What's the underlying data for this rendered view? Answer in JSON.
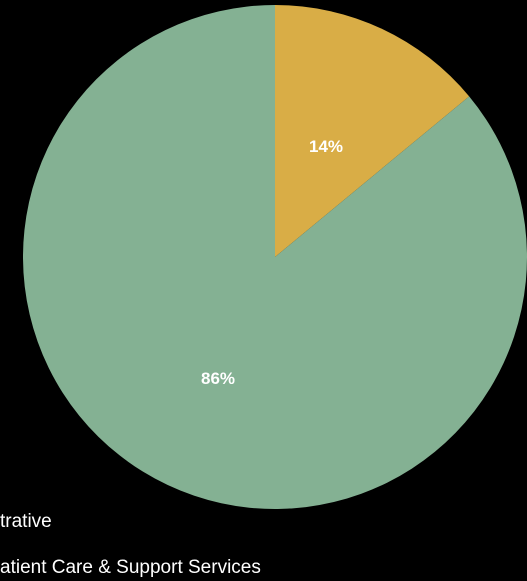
{
  "chart_data": {
    "type": "pie",
    "slices": [
      {
        "name": "Administrative",
        "value": 14,
        "label": "14%",
        "color": "#d9ad46"
      },
      {
        "name": "Patient Care & Support Services",
        "value": 86,
        "label": "86%",
        "color": "#84b193"
      }
    ],
    "start_angle_deg": 0,
    "direction": "clockwise",
    "legend_placement": "bottom-left",
    "legend_entries": [
      {
        "text": "Administrative",
        "visible_text": "trative"
      },
      {
        "text": "Patient Care & Support Services",
        "visible_text": "atient Care & Support Services"
      }
    ]
  },
  "background_color": "#000000"
}
